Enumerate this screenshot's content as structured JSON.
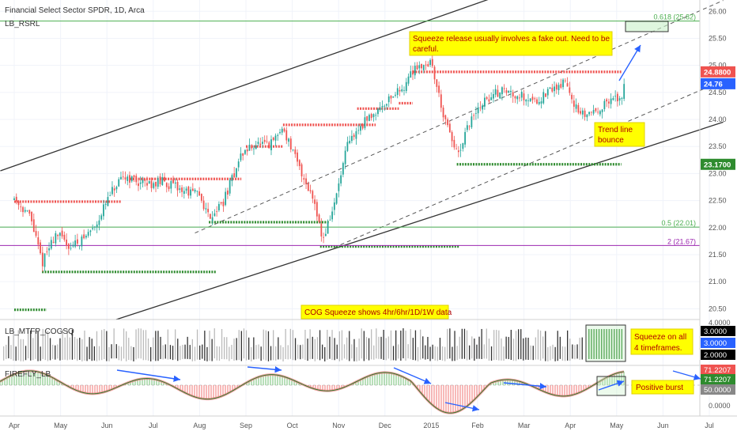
{
  "header": {
    "title": "Financial Select Sector SPDR, 1D, Arca",
    "indicator": "LB_RSRL"
  },
  "panels": {
    "squeeze_label": "LB_MTFP_COGSQ",
    "firefly_label": "FIREFLY_LB"
  },
  "annotations": {
    "fake_out": "Squeeze release usually involves a fake out. Need to be careful.",
    "trend_bounce_1": "Trend line",
    "trend_bounce_2": "bounce",
    "cog_note": "COG Squeeze shows 4hr/6hr/1D/1W data",
    "squeeze_all_1": "Squeeze on all",
    "squeeze_all_2": "4 timeframes.",
    "positive_burst": "Positive burst"
  },
  "colors": {
    "up": "#26a69a",
    "down": "#ef5350",
    "resistance": "#ef5350",
    "support": "#2e8b2e",
    "fib": "#4caf50",
    "fib2": "#9c27b0",
    "arrow": "#2962ff",
    "note_bg": "#ffff00",
    "price_tag": "#2962ff"
  },
  "chart_data": {
    "type": "candlestick",
    "x_axis_labels": [
      "Apr",
      "May",
      "Jun",
      "Jul",
      "Aug",
      "Sep",
      "Oct",
      "Nov",
      "Dec",
      "2015",
      "Feb",
      "Mar",
      "Apr",
      "May",
      "Jun",
      "Jul"
    ],
    "y_axis_ticks": [
      "26.00",
      "25.50",
      "25.00",
      "24.50",
      "24.00",
      "23.50",
      "23.00",
      "22.50",
      "22.00",
      "21.50",
      "21.00",
      "20.50"
    ],
    "ylim": [
      20.3,
      26.15
    ],
    "price_tags": {
      "resistance": "24.8800",
      "last": "24.76",
      "support": "23.1700"
    },
    "fib_levels": [
      {
        "label": "0.618 (25.82)",
        "value": 25.82
      },
      {
        "label": "0.5 (22.01)",
        "value": 22.01
      },
      {
        "label": "2 (21.67)",
        "value": 21.67
      }
    ],
    "levels": [
      {
        "kind": "support",
        "value": 21.18,
        "from": 0.6,
        "to": 4.35
      },
      {
        "kind": "support",
        "value": 20.48,
        "from": 0.0,
        "to": 0.7
      },
      {
        "kind": "resistance",
        "value": 22.48,
        "from": 0.0,
        "to": 2.3
      },
      {
        "kind": "resistance",
        "value": 22.9,
        "from": 2.5,
        "to": 4.9
      },
      {
        "kind": "support",
        "value": 22.1,
        "from": 4.2,
        "to": 6.8
      },
      {
        "kind": "resistance",
        "value": 23.5,
        "from": 5.0,
        "to": 5.8
      },
      {
        "kind": "resistance",
        "value": 23.9,
        "from": 5.8,
        "to": 7.8
      },
      {
        "kind": "resistance",
        "value": 24.2,
        "from": 7.4,
        "to": 8.3
      },
      {
        "kind": "resistance",
        "value": 24.3,
        "from": 8.3,
        "to": 8.6
      },
      {
        "kind": "support",
        "value": 21.65,
        "from": 6.6,
        "to": 9.6
      },
      {
        "kind": "resistance",
        "value": 24.88,
        "from": 8.6,
        "to": 13.1
      },
      {
        "kind": "support",
        "value": 23.17,
        "from": 9.55,
        "to": 13.1
      }
    ],
    "trend_lines": [
      {
        "style": "solid",
        "p1": [
          -0.3,
          23.05
        ],
        "p2": [
          10.5,
          26.3
        ]
      },
      {
        "style": "solid",
        "p1": [
          2.2,
          20.3
        ],
        "p2": [
          15.3,
          23.95
        ]
      },
      {
        "style": "dashed",
        "p1": [
          3.9,
          21.9
        ],
        "p2": [
          15.3,
          26.2
        ]
      },
      {
        "style": "dashed",
        "p1": [
          6.9,
          21.63
        ],
        "p2": [
          15.3,
          24.72
        ]
      }
    ],
    "price_path": [
      [
        0.0,
        22.55
      ],
      [
        0.35,
        22.2
      ],
      [
        0.6,
        21.35
      ],
      [
        0.9,
        21.9
      ],
      [
        1.2,
        21.65
      ],
      [
        1.5,
        21.8
      ],
      [
        1.75,
        22.05
      ],
      [
        2.1,
        22.65
      ],
      [
        2.4,
        22.95
      ],
      [
        2.8,
        22.8
      ],
      [
        3.2,
        22.85
      ],
      [
        3.6,
        22.7
      ],
      [
        4.0,
        22.6
      ],
      [
        4.2,
        22.2
      ],
      [
        4.5,
        22.45
      ],
      [
        4.9,
        23.35
      ],
      [
        5.2,
        23.55
      ],
      [
        5.5,
        23.5
      ],
      [
        5.8,
        23.85
      ],
      [
        6.1,
        23.2
      ],
      [
        6.5,
        22.45
      ],
      [
        6.65,
        21.75
      ],
      [
        6.9,
        22.4
      ],
      [
        7.2,
        23.55
      ],
      [
        7.5,
        23.9
      ],
      [
        7.8,
        24.15
      ],
      [
        8.1,
        24.4
      ],
      [
        8.4,
        24.6
      ],
      [
        8.65,
        24.98
      ],
      [
        9.0,
        25.05
      ],
      [
        9.3,
        23.95
      ],
      [
        9.45,
        23.6
      ],
      [
        9.6,
        23.3
      ],
      [
        9.8,
        23.9
      ],
      [
        10.1,
        24.3
      ],
      [
        10.5,
        24.55
      ],
      [
        10.9,
        24.45
      ],
      [
        11.3,
        24.35
      ],
      [
        11.6,
        24.55
      ],
      [
        11.9,
        24.7
      ],
      [
        12.2,
        24.05
      ],
      [
        12.6,
        24.2
      ],
      [
        12.9,
        24.35
      ],
      [
        13.1,
        24.4
      ],
      [
        13.2,
        24.76
      ]
    ],
    "squeeze_ylim": [
      2.0,
      4.0
    ],
    "squeeze_ticks": [
      "4.0000",
      "3.0000",
      "3.0000",
      "2.0000"
    ],
    "firefly_ylim": [
      0,
      80
    ],
    "firefly_ticks": [
      "71.2207",
      "71.2207",
      "50.0000",
      "0.0000"
    ]
  }
}
